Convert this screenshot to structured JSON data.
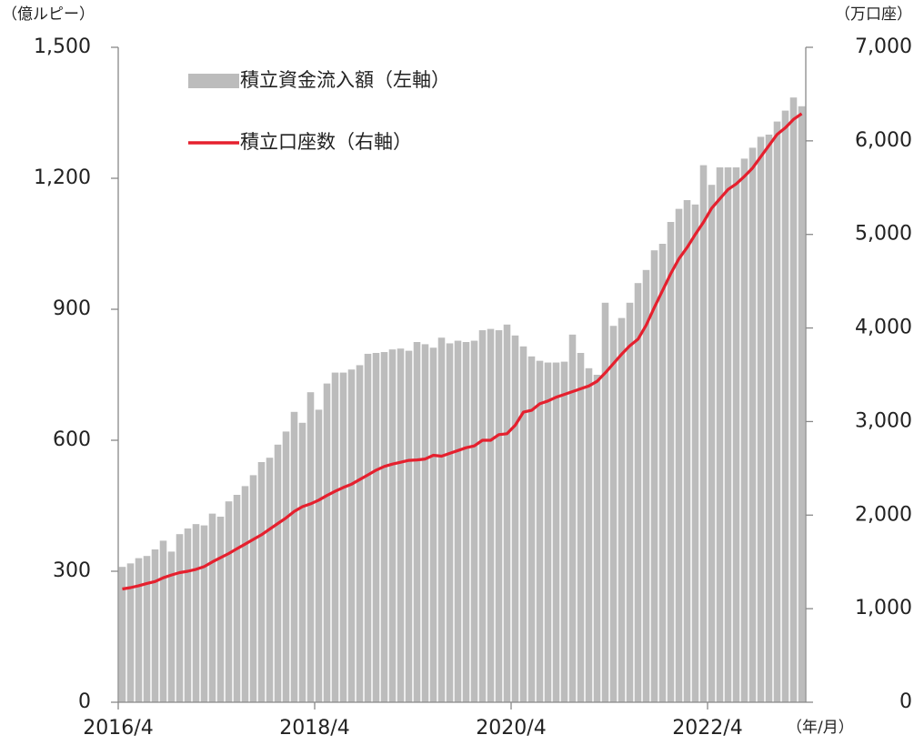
{
  "chart_data": {
    "type": "bar-line",
    "y_unit": "（億ルピー）",
    "y2_unit": "（万口座）",
    "x_unit": "（年/月）",
    "categories": [
      "2016/4",
      null,
      null,
      null,
      null,
      null,
      null,
      null,
      null,
      null,
      null,
      null,
      null,
      null,
      null,
      null,
      null,
      null,
      null,
      null,
      null,
      null,
      null,
      null,
      "2018/4",
      null,
      null,
      null,
      null,
      null,
      null,
      null,
      null,
      null,
      null,
      null,
      null,
      null,
      null,
      null,
      null,
      null,
      null,
      null,
      null,
      null,
      null,
      null,
      "2020/4",
      null,
      null,
      null,
      null,
      null,
      null,
      null,
      null,
      null,
      null,
      null,
      null,
      null,
      null,
      null,
      null,
      null,
      null,
      null,
      null,
      null,
      null,
      null,
      "2022/4",
      null,
      null,
      null,
      null,
      null,
      null,
      null,
      null,
      null,
      null,
      null
    ],
    "series": [
      {
        "name": "積立資金流入額（左軸）",
        "color": "#bcbcbc",
        "axis": "y",
        "values": [
          310,
          318,
          330,
          335,
          350,
          370,
          345,
          385,
          398,
          408,
          405,
          432,
          425,
          460,
          475,
          495,
          520,
          550,
          560,
          590,
          620,
          665,
          640,
          710,
          670,
          730,
          755,
          755,
          762,
          772,
          798,
          800,
          802,
          808,
          810,
          805,
          825,
          820,
          812,
          835,
          822,
          828,
          825,
          828,
          852,
          855,
          852,
          865,
          840,
          815,
          792,
          782,
          778,
          778,
          780,
          842,
          800,
          765,
          750,
          915,
          862,
          880,
          915,
          960,
          990,
          1035,
          1050,
          1100,
          1130,
          1150,
          1140,
          1230,
          1185,
          1225,
          1225,
          1225,
          1245,
          1270,
          1295,
          1300,
          1330,
          1355,
          1385,
          1365
        ]
      },
      {
        "name": "積立口座数（右軸）",
        "color": "#e5202e",
        "axis": "y2",
        "values": [
          1210,
          1225,
          1245,
          1270,
          1290,
          1330,
          1360,
          1385,
          1400,
          1420,
          1450,
          1500,
          1545,
          1590,
          1640,
          1690,
          1740,
          1790,
          1850,
          1910,
          1970,
          2040,
          2090,
          2120,
          2160,
          2210,
          2255,
          2295,
          2330,
          2380,
          2430,
          2480,
          2520,
          2545,
          2565,
          2585,
          2590,
          2600,
          2640,
          2630,
          2660,
          2690,
          2720,
          2740,
          2800,
          2800,
          2860,
          2870,
          2960,
          3100,
          3120,
          3190,
          3220,
          3260,
          3290,
          3320,
          3350,
          3380,
          3430,
          3520,
          3620,
          3720,
          3810,
          3880,
          4030,
          4220,
          4400,
          4580,
          4740,
          4860,
          5000,
          5130,
          5280,
          5380,
          5480,
          5540,
          5620,
          5710,
          5830,
          5950,
          6070,
          6140,
          6230,
          6290
        ]
      }
    ],
    "ylim": [
      0,
      1500
    ],
    "yticks": [
      0,
      300,
      600,
      900,
      {
        "value": 1200,
        "label": "1,200"
      },
      {
        "value": 1500,
        "label": "1,500"
      }
    ],
    "y2lim": [
      0,
      7000
    ],
    "y2ticks": [
      0,
      {
        "value": 1000,
        "label": "1,000"
      },
      {
        "value": 2000,
        "label": "2,000"
      },
      {
        "value": 3000,
        "label": "3,000"
      },
      {
        "value": 4000,
        "label": "4,000"
      },
      {
        "value": 5000,
        "label": "5,000"
      },
      {
        "value": 6000,
        "label": "6,000"
      },
      {
        "value": 7000,
        "label": "7,000"
      }
    ],
    "grid": false
  }
}
